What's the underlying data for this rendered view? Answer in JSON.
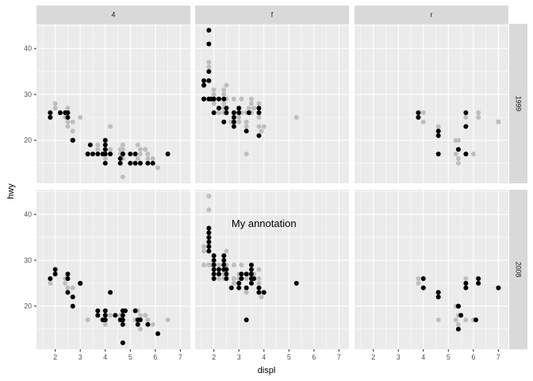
{
  "chart_data": {
    "type": "scatter",
    "xlabel": "displ",
    "ylabel": "hwy",
    "facet_cols": [
      "4",
      "f",
      "r"
    ],
    "facet_rows": [
      "1999",
      "2008"
    ],
    "xlim": [
      1.25,
      7.4
    ],
    "ylim": [
      10.6,
      45.4
    ],
    "x_ticks": [
      2,
      3,
      4,
      5,
      6,
      7
    ],
    "y_ticks": [
      20,
      30,
      40
    ],
    "grid": true,
    "colors": {
      "highlight": "#000000",
      "background_points": "#bebebe",
      "panel": "#ebebeb",
      "strip": "#d9d9d9"
    },
    "annotation": {
      "text": "My annotation",
      "x": 4,
      "y": 38,
      "col": "f",
      "row": "2008"
    },
    "background": {
      "4": [
        [
          1.8,
          26
        ],
        [
          1.8,
          25
        ],
        [
          2,
          28
        ],
        [
          2,
          27
        ],
        [
          2.4,
          26
        ],
        [
          2.4,
          25
        ],
        [
          2.5,
          23
        ],
        [
          2.5,
          24
        ],
        [
          2.5,
          27
        ],
        [
          2.5,
          26
        ],
        [
          2.7,
          20
        ],
        [
          2.7,
          22
        ],
        [
          2.7,
          24
        ],
        [
          3,
          25
        ],
        [
          3.3,
          17
        ],
        [
          3.3,
          17
        ],
        [
          3.7,
          19
        ],
        [
          3.7,
          18
        ],
        [
          3.9,
          17
        ],
        [
          4,
          17
        ],
        [
          4,
          19
        ],
        [
          4,
          18
        ],
        [
          4,
          16
        ],
        [
          4.2,
          23
        ],
        [
          4.2,
          18
        ],
        [
          4.6,
          17
        ],
        [
          4.6,
          18
        ],
        [
          4.6,
          17
        ],
        [
          4.7,
          19
        ],
        [
          4.7,
          19
        ],
        [
          4.7,
          18
        ],
        [
          4.7,
          12
        ],
        [
          4.7,
          17
        ],
        [
          4.7,
          17
        ],
        [
          4.7,
          16
        ],
        [
          5.2,
          17
        ],
        [
          5.3,
          19
        ],
        [
          5.3,
          16
        ],
        [
          5.4,
          18
        ],
        [
          5.4,
          15
        ],
        [
          5.4,
          17
        ],
        [
          5.6,
          18
        ],
        [
          5.6,
          18
        ],
        [
          5.7,
          17
        ],
        [
          5.7,
          16
        ],
        [
          5.9,
          16
        ],
        [
          6.1,
          14
        ],
        [
          6.5,
          17
        ]
      ],
      "f": [
        [
          1.6,
          33
        ],
        [
          1.6,
          32
        ],
        [
          1.6,
          32
        ],
        [
          1.6,
          29
        ],
        [
          1.6,
          29
        ],
        [
          1.8,
          36
        ],
        [
          1.8,
          37
        ],
        [
          1.8,
          35
        ],
        [
          1.8,
          29
        ],
        [
          1.8,
          29
        ],
        [
          1.8,
          33
        ],
        [
          1.8,
          44
        ],
        [
          1.8,
          41
        ],
        [
          1.9,
          29
        ],
        [
          2,
          30
        ],
        [
          2,
          31
        ],
        [
          2,
          30
        ],
        [
          2,
          29
        ],
        [
          2,
          26
        ],
        [
          2,
          28
        ],
        [
          2,
          29
        ],
        [
          2.2,
          27
        ],
        [
          2.2,
          29
        ],
        [
          2.2,
          26
        ],
        [
          2.4,
          30
        ],
        [
          2.4,
          31
        ],
        [
          2.4,
          27
        ],
        [
          2.4,
          26
        ],
        [
          2.4,
          28
        ],
        [
          2.5,
          29
        ],
        [
          2.5,
          32
        ],
        [
          2.5,
          27
        ],
        [
          2.7,
          24
        ],
        [
          2.8,
          26
        ],
        [
          2.8,
          25
        ],
        [
          2.8,
          26
        ],
        [
          2.8,
          29
        ],
        [
          3,
          26
        ],
        [
          3,
          27
        ],
        [
          3,
          24
        ],
        [
          3,
          25
        ],
        [
          3.1,
          26
        ],
        [
          3.1,
          29
        ],
        [
          3.3,
          17
        ],
        [
          3.3,
          26
        ],
        [
          3.3,
          23
        ],
        [
          3.3,
          24
        ],
        [
          3.4,
          27
        ],
        [
          3.5,
          29
        ],
        [
          3.5,
          26
        ],
        [
          3.5,
          28
        ],
        [
          3.5,
          26
        ],
        [
          3.6,
          27
        ],
        [
          3.8,
          26
        ],
        [
          3.8,
          28
        ],
        [
          3.8,
          23
        ],
        [
          3.8,
          25
        ],
        [
          3.9,
          22
        ],
        [
          4,
          23
        ],
        [
          5.3,
          25
        ]
      ],
      "r": [
        [
          3.8,
          26
        ],
        [
          3.8,
          25
        ],
        [
          4,
          24
        ],
        [
          4,
          26
        ],
        [
          4.6,
          23
        ],
        [
          4.6,
          22
        ],
        [
          4.6,
          17
        ],
        [
          5.3,
          17
        ],
        [
          5.3,
          20
        ],
        [
          5.4,
          20
        ],
        [
          5.4,
          16
        ],
        [
          5.4,
          15
        ],
        [
          5.4,
          18
        ],
        [
          5.7,
          26
        ],
        [
          5.7,
          25
        ],
        [
          5.7,
          17
        ],
        [
          6,
          17
        ],
        [
          6.2,
          26
        ],
        [
          6.2,
          25
        ],
        [
          7,
          24
        ],
        [
          7,
          24
        ]
      ]
    },
    "series": [
      {
        "col": "4",
        "row": "1999",
        "points": [
          [
            1.8,
            26
          ],
          [
            1.8,
            25
          ],
          [
            2.2,
            26
          ],
          [
            2.4,
            26
          ],
          [
            2.5,
            25
          ],
          [
            2.5,
            26
          ],
          [
            2.7,
            20
          ],
          [
            2.7,
            20
          ],
          [
            2.7,
            20
          ],
          [
            3.3,
            17
          ],
          [
            3.3,
            17
          ],
          [
            3.4,
            19
          ],
          [
            3.5,
            17
          ],
          [
            3.7,
            17
          ],
          [
            3.9,
            17
          ],
          [
            4,
            17
          ],
          [
            4,
            19
          ],
          [
            4,
            20
          ],
          [
            4,
            18
          ],
          [
            4,
            15
          ],
          [
            4.2,
            17
          ],
          [
            4.6,
            15
          ],
          [
            4.6,
            16
          ],
          [
            4.7,
            17
          ],
          [
            4.7,
            17
          ],
          [
            5,
            15
          ],
          [
            5,
            17
          ],
          [
            5.2,
            15
          ],
          [
            5.2,
            17
          ],
          [
            5.4,
            15
          ],
          [
            5.7,
            15
          ],
          [
            5.9,
            15
          ],
          [
            6.5,
            17
          ]
        ]
      },
      {
        "col": "f",
        "row": "1999",
        "points": [
          [
            1.6,
            33
          ],
          [
            1.6,
            32
          ],
          [
            1.6,
            32
          ],
          [
            1.6,
            29
          ],
          [
            1.6,
            29
          ],
          [
            1.8,
            33
          ],
          [
            1.8,
            35
          ],
          [
            1.8,
            29
          ],
          [
            1.8,
            44
          ],
          [
            1.8,
            41
          ],
          [
            1.9,
            29
          ],
          [
            2,
            29
          ],
          [
            2,
            29
          ],
          [
            2,
            26
          ],
          [
            2.2,
            29
          ],
          [
            2.2,
            27
          ],
          [
            2.4,
            29
          ],
          [
            2.4,
            24
          ],
          [
            2.5,
            26
          ],
          [
            2.5,
            27
          ],
          [
            2.8,
            23
          ],
          [
            2.8,
            24
          ],
          [
            2.8,
            25
          ],
          [
            2.8,
            26
          ],
          [
            3,
            26
          ],
          [
            3,
            27
          ],
          [
            3.3,
            22
          ],
          [
            3.4,
            26
          ],
          [
            3.8,
            27
          ],
          [
            3.8,
            26
          ],
          [
            3.8,
            21
          ]
        ]
      },
      {
        "col": "r",
        "row": "1999",
        "points": [
          [
            3.8,
            26
          ],
          [
            3.8,
            25
          ],
          [
            4.6,
            17
          ],
          [
            4.6,
            21
          ],
          [
            4.6,
            22
          ],
          [
            5.4,
            18
          ],
          [
            5.7,
            17
          ],
          [
            5.7,
            23
          ],
          [
            5.7,
            26
          ]
        ]
      },
      {
        "col": "4",
        "row": "2008",
        "points": [
          [
            1.8,
            26
          ],
          [
            2,
            28
          ],
          [
            2,
            27
          ],
          [
            2.5,
            27
          ],
          [
            2.5,
            26
          ],
          [
            2.5,
            23
          ],
          [
            2.7,
            22
          ],
          [
            2.7,
            20
          ],
          [
            3,
            25
          ],
          [
            3,
            25
          ],
          [
            3.7,
            19
          ],
          [
            3.7,
            18
          ],
          [
            3.9,
            17
          ],
          [
            4,
            19
          ],
          [
            4,
            18
          ],
          [
            4,
            17
          ],
          [
            4.2,
            23
          ],
          [
            4.4,
            18
          ],
          [
            4.6,
            17
          ],
          [
            4.7,
            18
          ],
          [
            4.7,
            17
          ],
          [
            4.7,
            19
          ],
          [
            4.7,
            16
          ],
          [
            4.7,
            12
          ],
          [
            4.8,
            19
          ],
          [
            5.2,
            19
          ],
          [
            5.3,
            16
          ],
          [
            5.3,
            17
          ],
          [
            5.4,
            17
          ],
          [
            5.7,
            16
          ],
          [
            6.1,
            14
          ]
        ]
      },
      {
        "col": "f",
        "row": "2008",
        "points": [
          [
            1.8,
            37
          ],
          [
            1.8,
            36
          ],
          [
            1.8,
            35
          ],
          [
            1.8,
            34
          ],
          [
            1.8,
            33
          ],
          [
            1.8,
            32
          ],
          [
            2,
            31
          ],
          [
            2,
            30
          ],
          [
            2,
            29
          ],
          [
            2,
            28
          ],
          [
            2,
            27
          ],
          [
            2,
            26
          ],
          [
            2.2,
            28
          ],
          [
            2.2,
            27
          ],
          [
            2.4,
            31
          ],
          [
            2.4,
            30
          ],
          [
            2.4,
            29
          ],
          [
            2.4,
            28
          ],
          [
            2.5,
            28
          ],
          [
            2.5,
            27
          ],
          [
            2.5,
            26
          ],
          [
            2.7,
            24
          ],
          [
            3,
            24
          ],
          [
            3,
            25
          ],
          [
            3.1,
            27
          ],
          [
            3.1,
            26
          ],
          [
            3.3,
            17
          ],
          [
            3.3,
            24
          ],
          [
            3.3,
            27
          ],
          [
            3.5,
            28
          ],
          [
            3.5,
            29
          ],
          [
            3.5,
            27
          ],
          [
            3.5,
            26
          ],
          [
            3.5,
            25
          ],
          [
            3.6,
            26
          ],
          [
            3.8,
            24
          ],
          [
            3.8,
            23
          ],
          [
            4,
            23
          ],
          [
            5.3,
            25
          ]
        ]
      },
      {
        "col": "r",
        "row": "2008",
        "points": [
          [
            4,
            26
          ],
          [
            4,
            24
          ],
          [
            4.6,
            23
          ],
          [
            4.6,
            22
          ],
          [
            5.4,
            20
          ],
          [
            5.4,
            20
          ],
          [
            5.4,
            15
          ],
          [
            5.5,
            18
          ],
          [
            5.7,
            24
          ],
          [
            5.7,
            25
          ],
          [
            6.1,
            17
          ],
          [
            6.2,
            26
          ],
          [
            6.2,
            25
          ],
          [
            7,
            24
          ]
        ]
      }
    ]
  }
}
